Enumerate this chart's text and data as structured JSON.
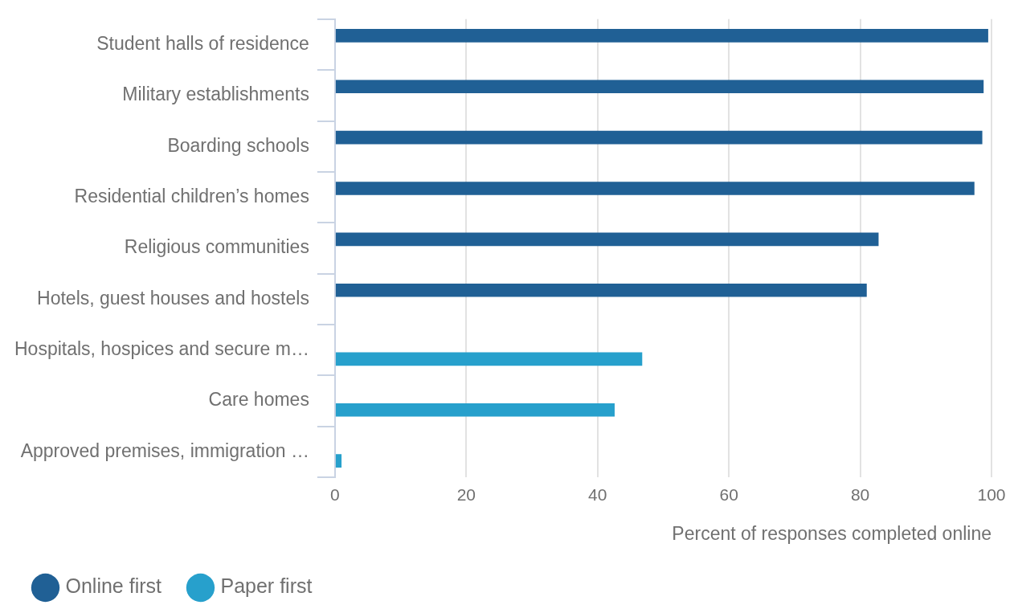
{
  "chart_data": {
    "type": "bar",
    "orientation": "horizontal",
    "xlabel": "Percent of responses completed online",
    "categories": [
      "Student halls of residence",
      "Military establishments",
      "Boarding schools",
      "Residential children’s homes",
      "Religious communities",
      "Hotels, guest houses and hostels",
      "Hospitals, hospices and secure m…",
      "Care homes",
      "Approved premises, immigration …"
    ],
    "series": [
      {
        "name": "Online first",
        "color": "#206095",
        "values": [
          99.5,
          98.8,
          98.6,
          97.4,
          82.8,
          81.0,
          null,
          null,
          null
        ]
      },
      {
        "name": "Paper first",
        "color": "#27a0cc",
        "values": [
          null,
          null,
          null,
          null,
          null,
          null,
          46.8,
          42.6,
          1.0
        ]
      }
    ],
    "xlim": [
      0,
      100
    ],
    "xticks": [
      0,
      20,
      40,
      60,
      80,
      100
    ],
    "grid": "x",
    "legend": "bottom left"
  }
}
